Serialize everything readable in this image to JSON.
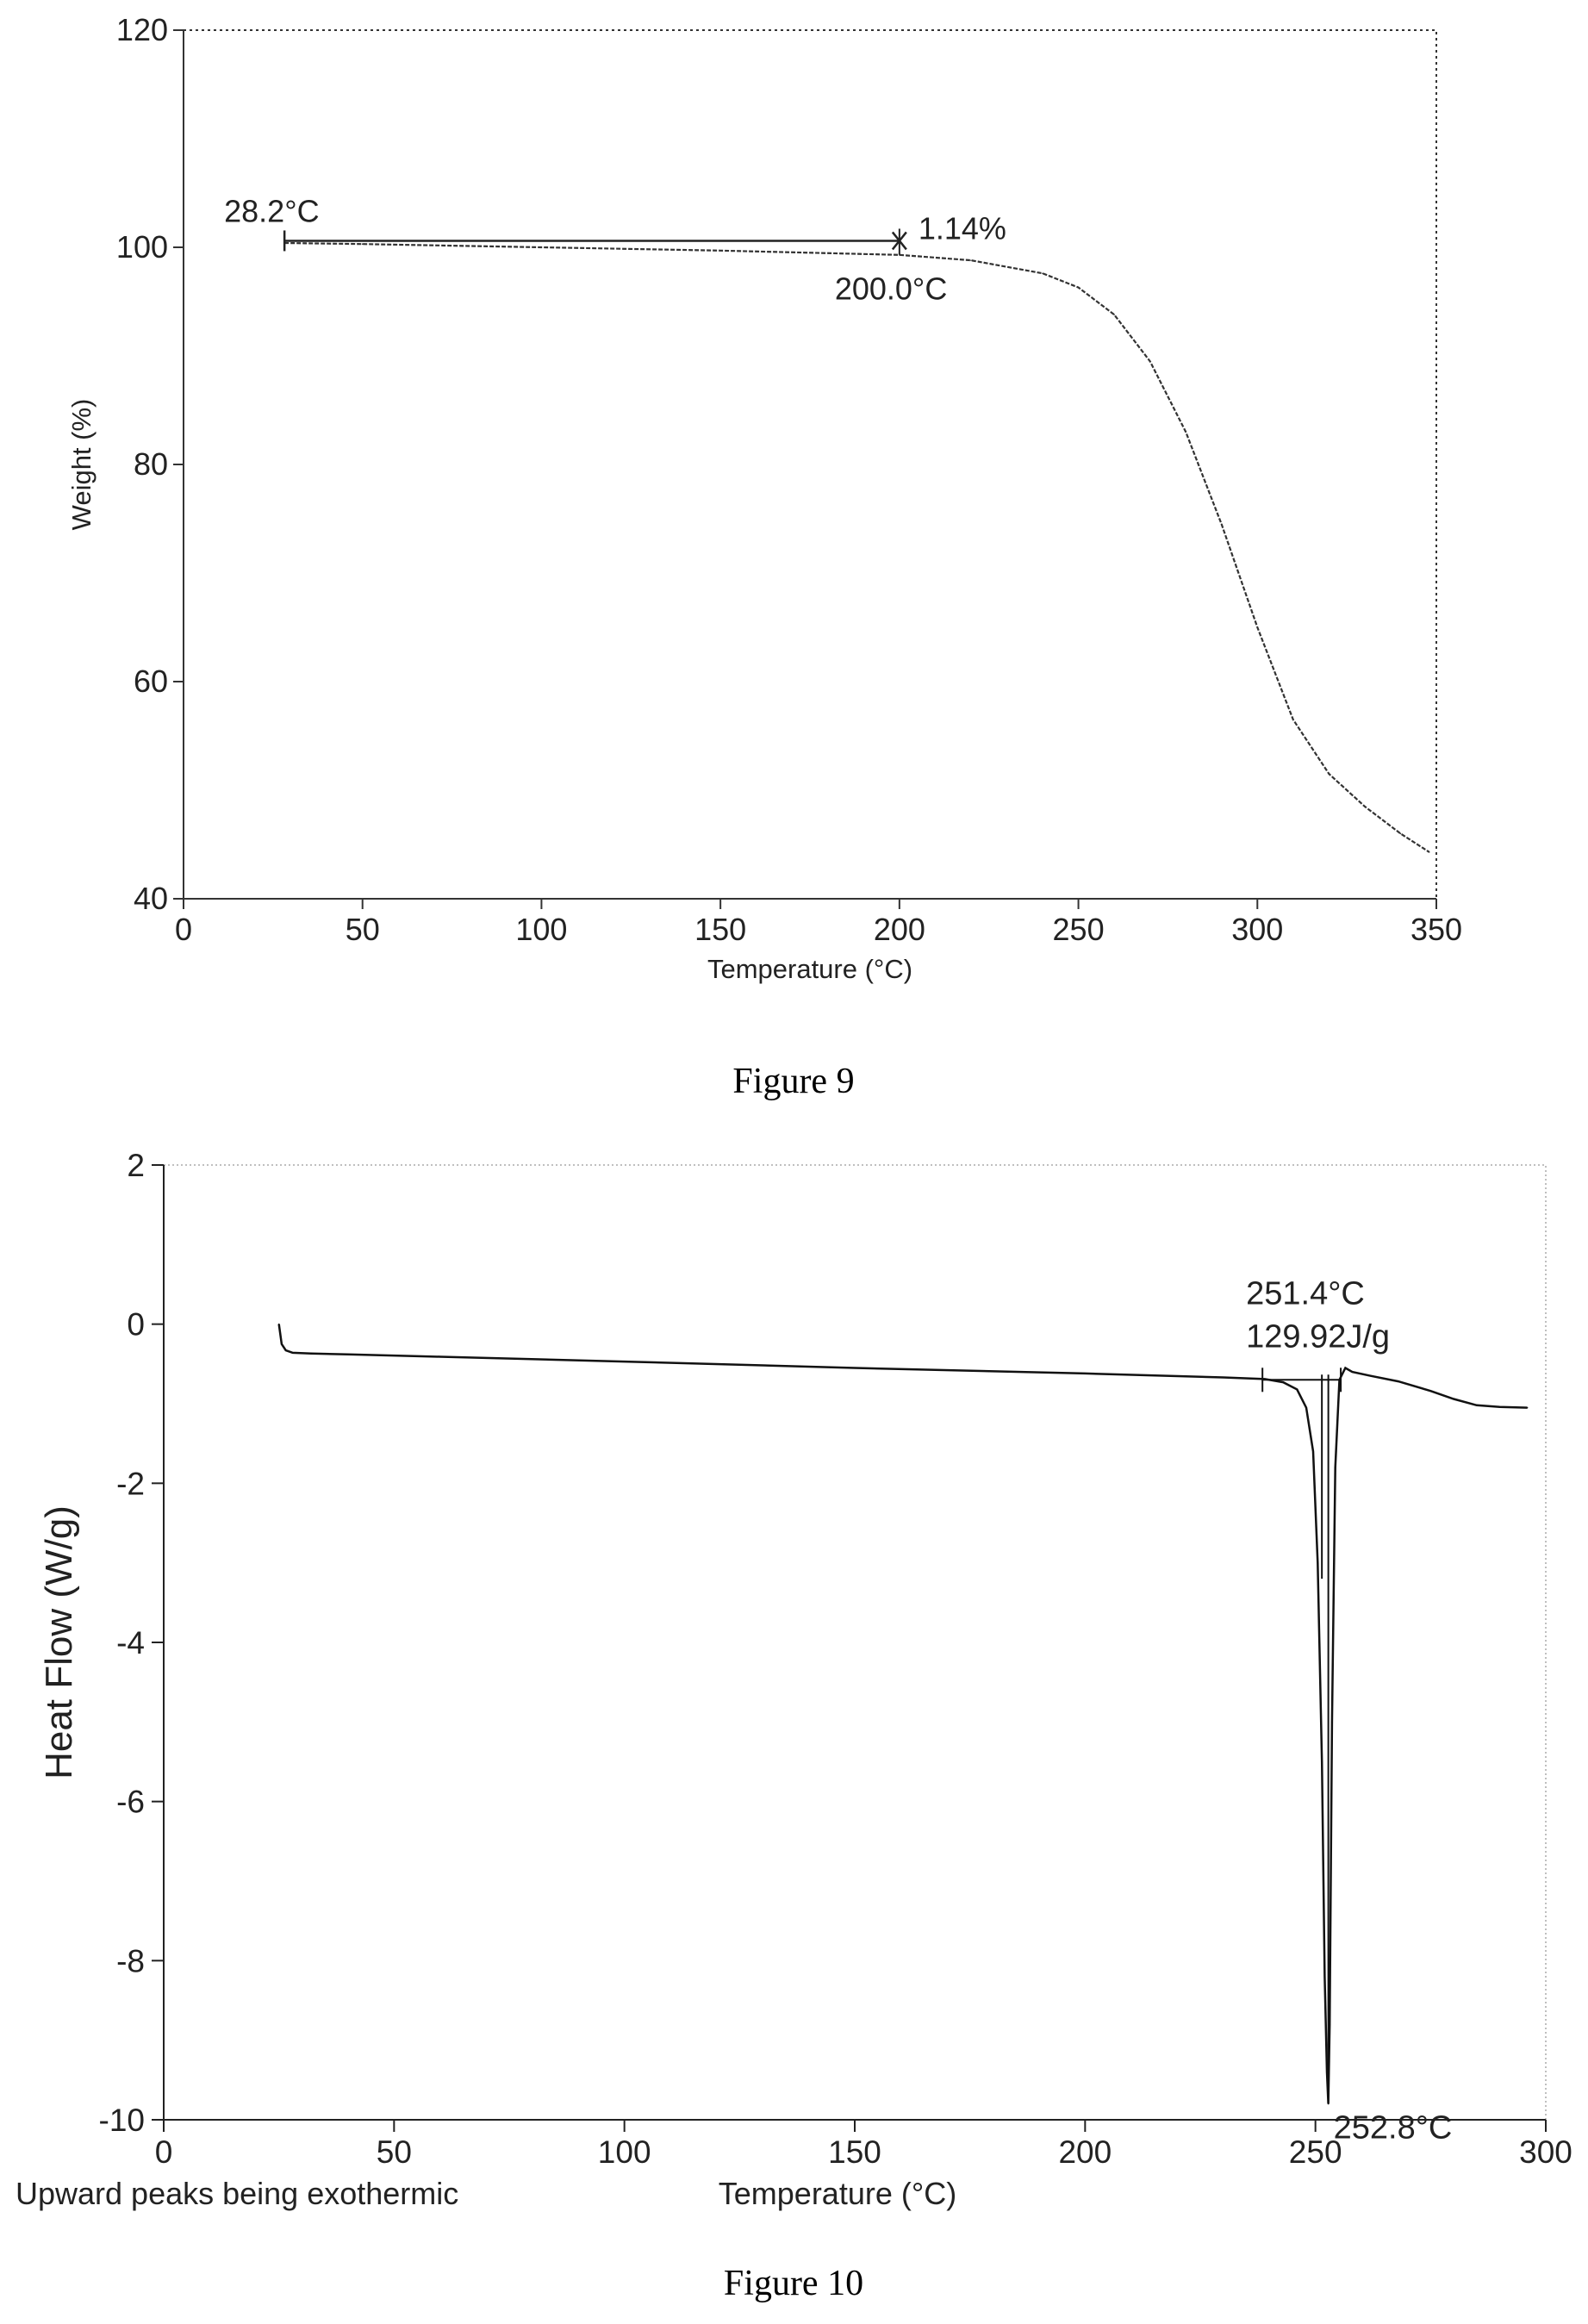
{
  "captions": {
    "fig9": "Figure 9",
    "fig10": "Figure 10"
  },
  "chart_data": [
    {
      "type": "line",
      "title": "",
      "xlabel": "Temperature (°C)",
      "ylabel": "Weight (%)",
      "xlim": [
        0,
        350
      ],
      "ylim": [
        40,
        120
      ],
      "xticks": [
        0,
        50,
        100,
        150,
        200,
        250,
        300,
        350
      ],
      "yticks": [
        40,
        60,
        80,
        100,
        120
      ],
      "grid": false,
      "series": [
        {
          "x": [
            28.2,
            50,
            100,
            150,
            200,
            220,
            240,
            250,
            260,
            270,
            280,
            290,
            300,
            310,
            320,
            330,
            340,
            348
          ],
          "y": [
            100.4,
            100.3,
            100.0,
            99.7,
            99.3,
            98.8,
            97.6,
            96.3,
            93.8,
            89.5,
            83.0,
            74.5,
            65.0,
            56.5,
            51.5,
            48.5,
            46.0,
            44.3
          ]
        }
      ],
      "annotations": [
        {
          "text": "28.2°C",
          "x": 28.2,
          "y": 100.6
        },
        {
          "text": "1.14%",
          "x": 200,
          "y": 100.6
        },
        {
          "text": "200.0°C",
          "x": 200,
          "y": 99.5
        }
      ]
    },
    {
      "type": "line",
      "title": "",
      "xlabel": "Temperature (°C)",
      "ylabel": "Heat Flow (W/g)",
      "note": "Upward peaks being exothermic",
      "xlim": [
        0,
        300
      ],
      "ylim": [
        -10,
        2
      ],
      "xticks": [
        0,
        50,
        100,
        150,
        200,
        250,
        300
      ],
      "yticks": [
        -10,
        -8,
        -6,
        -4,
        -2,
        0,
        2
      ],
      "grid": false,
      "series": [
        {
          "x": [
            25,
            25.6,
            26.5,
            28,
            32,
            40,
            60,
            100,
            150,
            200,
            230,
            239,
            243,
            246,
            248,
            249.5,
            250.5,
            251.4,
            252,
            252.5,
            252.8,
            253.1,
            253.6,
            254.3,
            255.2,
            256.5,
            258,
            262,
            268,
            275,
            280,
            285,
            290,
            296
          ],
          "y": [
            0.0,
            -0.25,
            -0.33,
            -0.36,
            -0.37,
            -0.38,
            -0.41,
            -0.47,
            -0.55,
            -0.62,
            -0.67,
            -0.69,
            -0.73,
            -0.82,
            -1.05,
            -1.6,
            -3.0,
            -5.5,
            -8.2,
            -9.4,
            -9.8,
            -8.8,
            -5.0,
            -1.8,
            -0.7,
            -0.55,
            -0.6,
            -0.65,
            -0.72,
            -0.84,
            -0.94,
            -1.02,
            -1.04,
            -1.05
          ]
        }
      ],
      "annotations": [
        {
          "text": "251.4°C",
          "x": 251.4,
          "y": -0.7
        },
        {
          "text": "129.92J/g",
          "x": 251.4,
          "y": -0.7
        },
        {
          "text": "252.8°C",
          "x": 252.8,
          "y": -9.8
        }
      ]
    }
  ]
}
